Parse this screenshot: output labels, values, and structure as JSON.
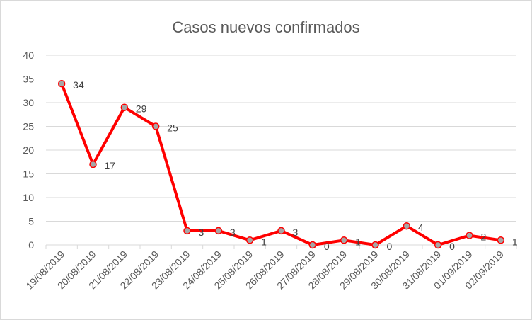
{
  "chart_data": {
    "type": "line",
    "title": "Casos nuevos confirmados",
    "xlabel": "",
    "ylabel": "",
    "ylim": [
      0,
      40
    ],
    "yticks": [
      0,
      5,
      10,
      15,
      20,
      25,
      30,
      35,
      40
    ],
    "grid": true,
    "legend": "none",
    "categories": [
      "19/08/2019",
      "20/08/2019",
      "21/08/2019",
      "22/08/2019",
      "23/08/2019",
      "24/08/2019",
      "25/08/2019",
      "26/08/2019",
      "27/08/2019",
      "28/08/2019",
      "29/08/2019",
      "30/08/2019",
      "31/08/2019",
      "01/09/2019",
      "02/09/2019"
    ],
    "series": [
      {
        "values": [
          34,
          17,
          29,
          25,
          3,
          3,
          1,
          3,
          0,
          1,
          0,
          4,
          0,
          2,
          1
        ],
        "line_color": "#ff0000",
        "marker_color": "#a6a6a6"
      }
    ]
  }
}
